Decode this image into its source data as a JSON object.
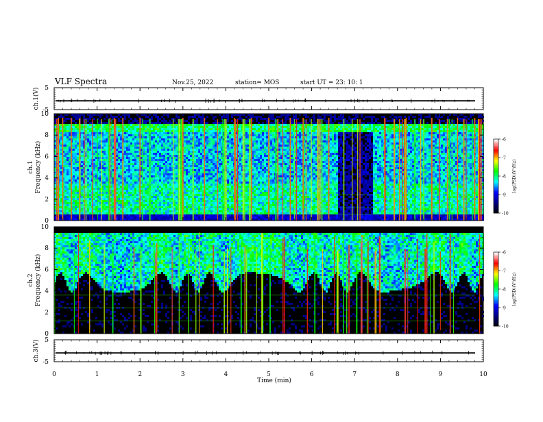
{
  "header": {
    "title": "VLF Spectra",
    "date": "Nov.25, 2022",
    "station": "station= MOS",
    "start": "start UT =  23: 10: 1"
  },
  "chart_data": [
    {
      "type": "line",
      "panel": "ch1-waveform",
      "ylabel": "ch.1(V)",
      "yticks": [
        "5",
        "-5"
      ],
      "ylim": [
        -5,
        5
      ],
      "xlim": [
        0,
        10
      ],
      "level": -1
    },
    {
      "type": "heatmap",
      "panel": "ch1-spectrogram",
      "ylabel": "ch.1\nFrequency (kHz)",
      "yticks": [
        "0",
        "2",
        "4",
        "6",
        "8",
        "10"
      ],
      "ylim": [
        0,
        10
      ],
      "xlim": [
        0,
        10
      ],
      "colorbar": {
        "label": "log(PSD)(V²/Hz)",
        "ticks": [
          "-6",
          "-7",
          "-8",
          "-9",
          "-10"
        ],
        "range": [
          -10,
          -6
        ]
      },
      "features": {
        "band_top_khz": 9,
        "dark_region_min": [
          6.6,
          7.4
        ],
        "spherics_min": [
          0.1,
          0.2,
          0.4,
          0.6,
          1.3,
          1.4,
          1.6,
          2.0,
          3.0,
          3.5,
          4.2,
          4.6,
          5.0,
          5.5,
          5.8,
          6.4,
          7.7,
          8.2,
          8.8,
          9.4,
          9.8
        ]
      }
    },
    {
      "type": "heatmap",
      "panel": "ch2-spectrogram",
      "ylabel": "ch.2\nFrequency (kHz)",
      "yticks": [
        "0",
        "2",
        "4",
        "6",
        "8",
        "10"
      ],
      "ylim": [
        0,
        10
      ],
      "xlim": [
        0,
        10
      ],
      "colorbar": {
        "label": "log(PSD)(V²/Hz)",
        "ticks": [
          "-6",
          "-7",
          "-8",
          "-9",
          "-10"
        ],
        "range": [
          -10,
          -6
        ]
      },
      "features": {
        "band_khz": [
          4,
          9.5
        ]
      }
    },
    {
      "type": "line",
      "panel": "ch3-waveform",
      "ylabel": "ch.3(V)",
      "yticks": [
        "5",
        "-5"
      ],
      "ylim": [
        -5,
        5
      ],
      "xlim": [
        0,
        10
      ],
      "level": -1
    }
  ],
  "xaxis": {
    "label": "Time (min)",
    "ticks": [
      "0",
      "1",
      "2",
      "3",
      "4",
      "5",
      "6",
      "7",
      "8",
      "9",
      "10"
    ]
  },
  "colors": {
    "background": "#ffffff",
    "ink": "#000000",
    "colormap": [
      "#000000",
      "#000080",
      "#0000ff",
      "#00ffff",
      "#00ff00",
      "#ffff00",
      "#ff0000",
      "#ffffff"
    ]
  }
}
